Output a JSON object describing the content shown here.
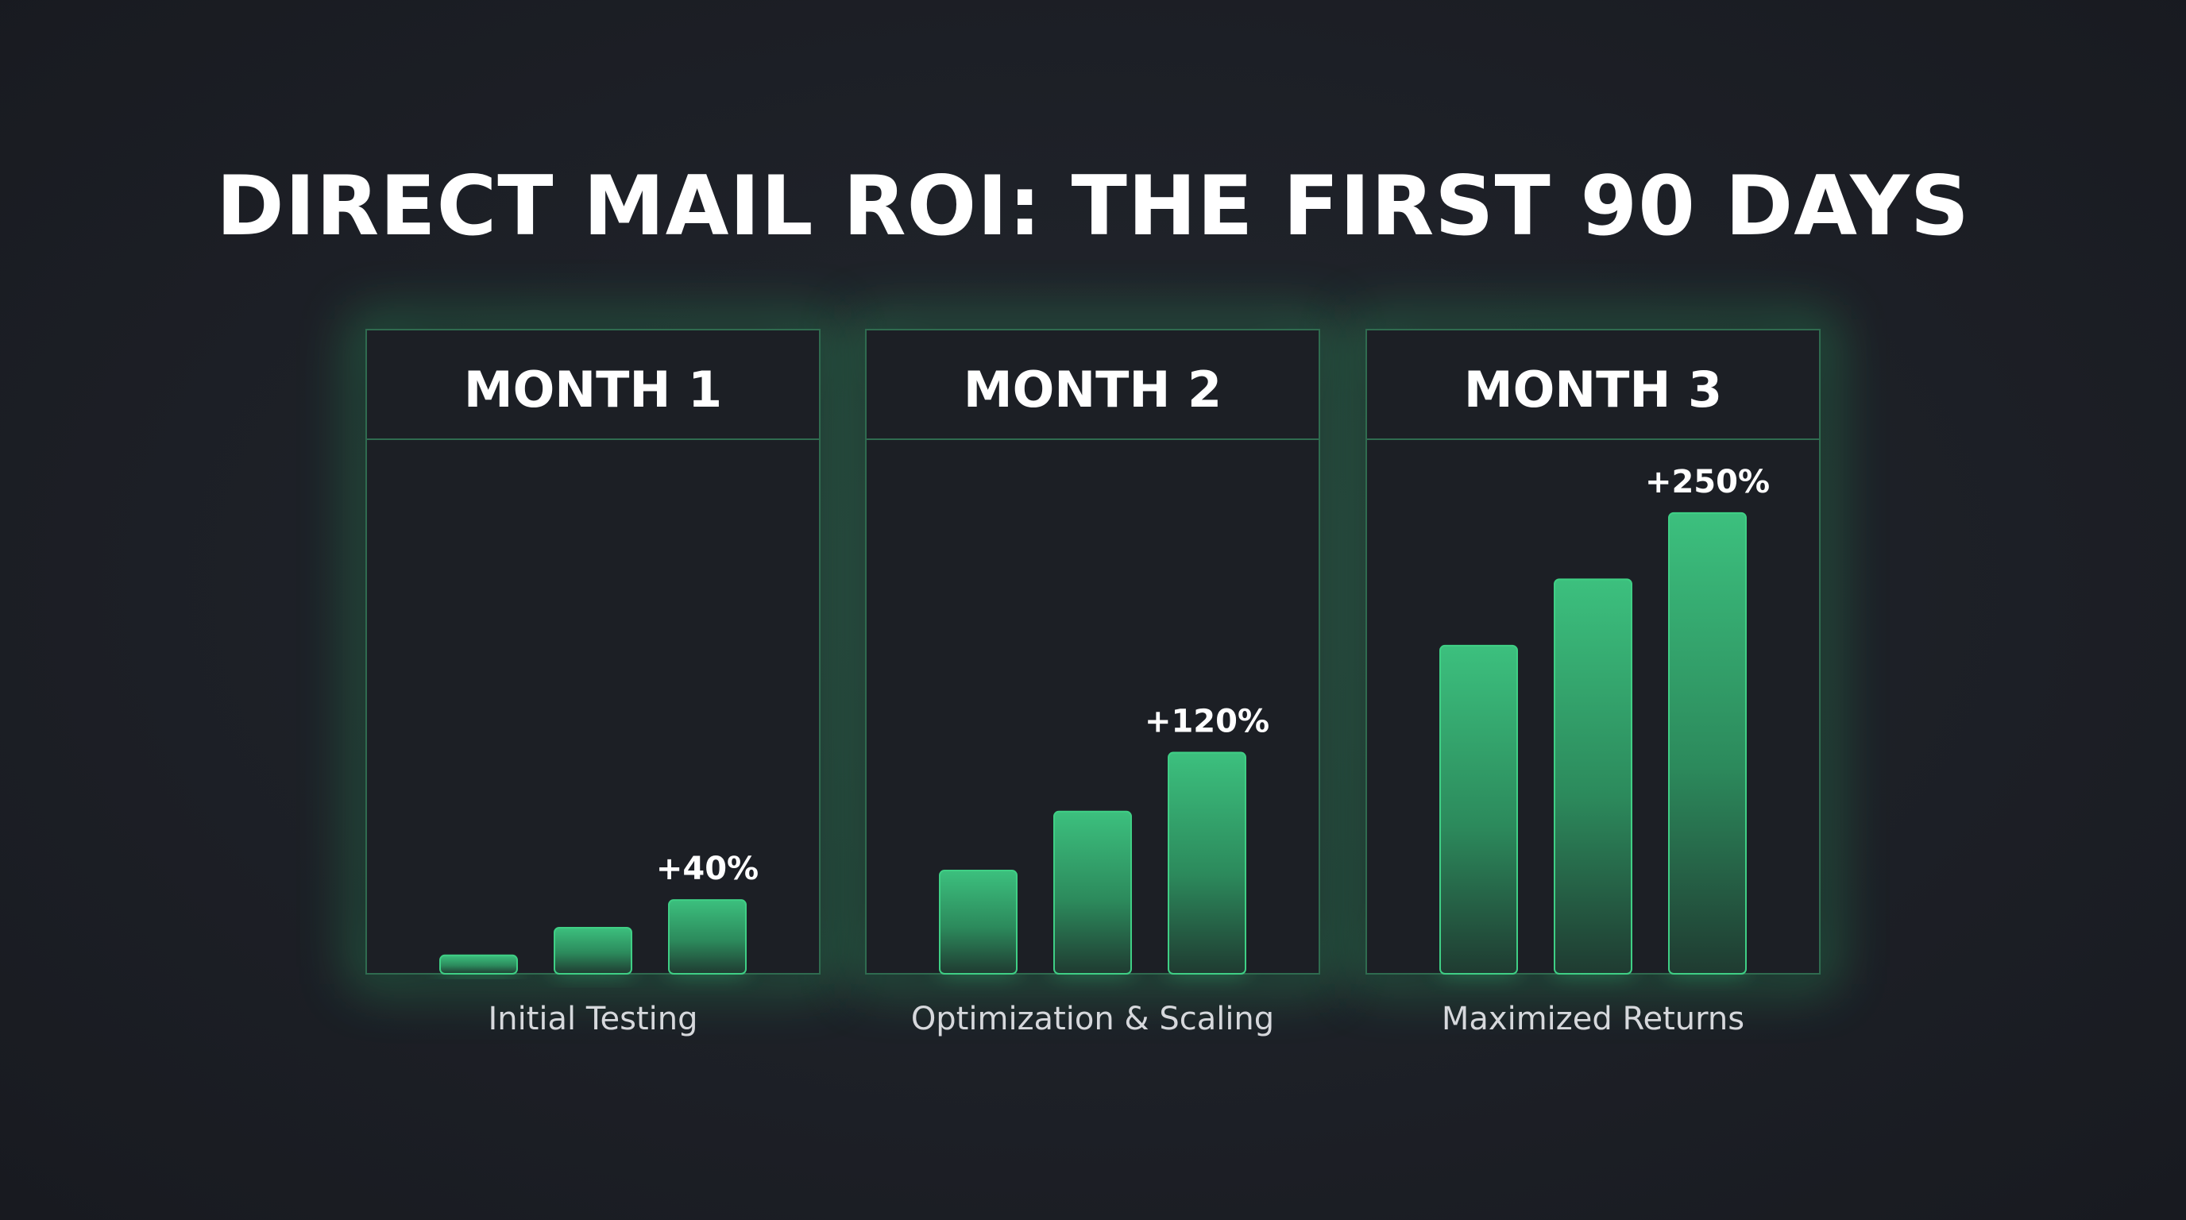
{
  "title": "DIRECT MAIL ROI: THE FIRST 90 DAYS",
  "colors": {
    "background": "#1d2027",
    "accent": "#3ab778",
    "panel_border": "#2f6b4f",
    "text": "#ffffff",
    "caption": "#d6d8dc"
  },
  "chart_data": {
    "type": "bar",
    "title": "DIRECT MAIL ROI: THE FIRST 90 DAYS",
    "ylim": [
      0,
      290
    ],
    "grid": false,
    "legend": "none",
    "panels": [
      {
        "header": "MONTH 1",
        "caption": "Initial Testing",
        "values": [
          10,
          25,
          40
        ],
        "value_label": "+40%"
      },
      {
        "header": "MONTH 2",
        "caption": "Optimization & Scaling",
        "values": [
          56,
          88,
          120
        ],
        "value_label": "+120%"
      },
      {
        "header": "MONTH 3",
        "caption": "Maximized Returns",
        "values": [
          178,
          214,
          250
        ],
        "value_label": "+250%"
      }
    ]
  }
}
